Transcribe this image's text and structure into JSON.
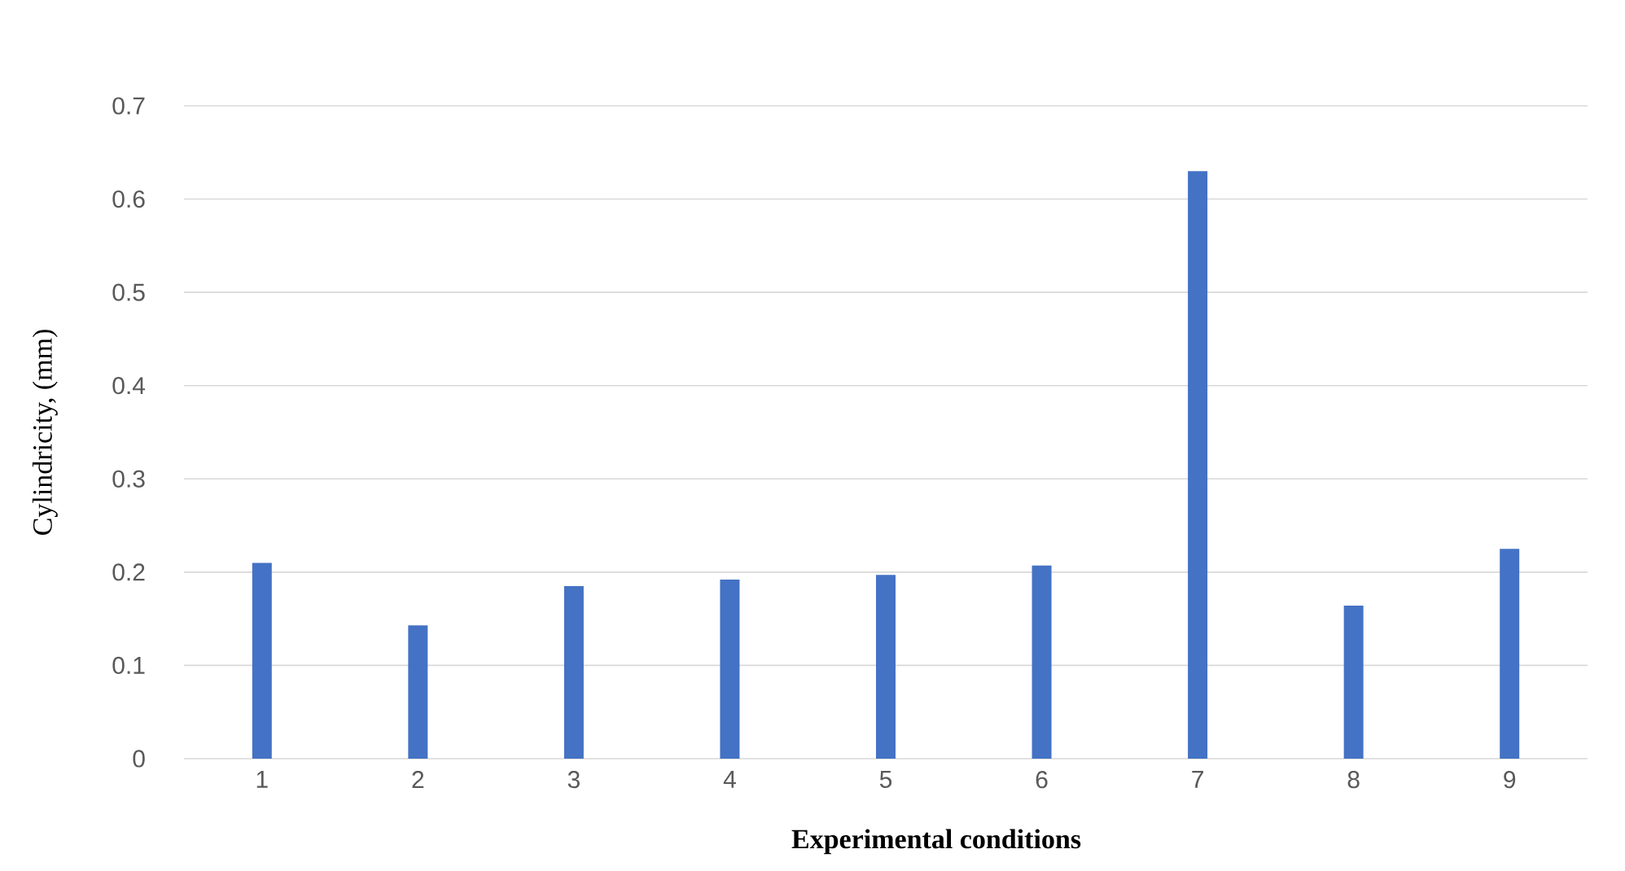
{
  "chart_data": {
    "type": "bar",
    "xlabel": "Experimental conditions",
    "ylabel": "Cylindricity,  (mm)",
    "categories": [
      "1",
      "2",
      "3",
      "4",
      "5",
      "6",
      "7",
      "8",
      "9"
    ],
    "values": [
      0.21,
      0.143,
      0.185,
      0.192,
      0.197,
      0.207,
      0.63,
      0.164,
      0.225
    ],
    "color": "#4472c4",
    "ylim": [
      0,
      0.7
    ],
    "yticks": [
      0,
      0.1,
      0.2,
      0.3,
      0.4,
      0.5,
      0.6,
      0.7
    ],
    "grid": "y"
  }
}
